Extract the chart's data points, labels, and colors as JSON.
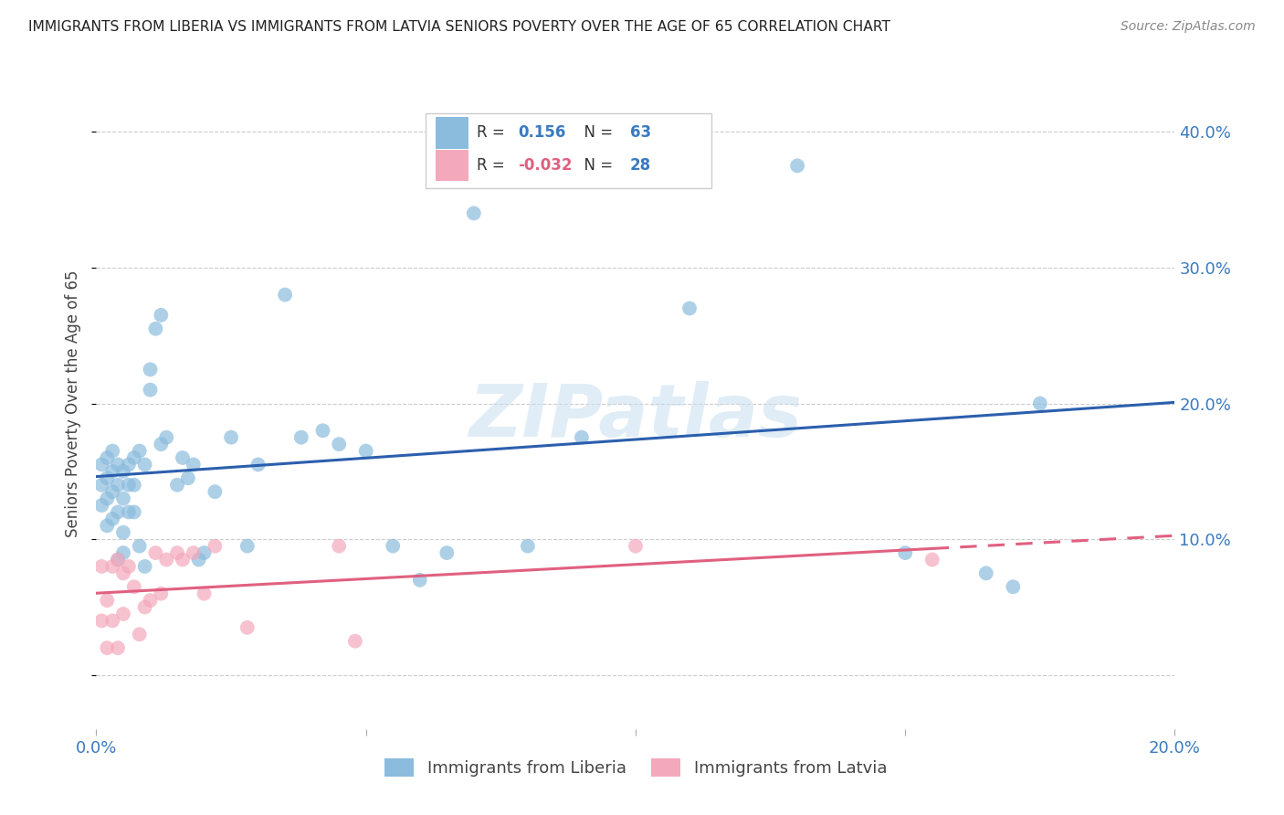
{
  "title": "IMMIGRANTS FROM LIBERIA VS IMMIGRANTS FROM LATVIA SENIORS POVERTY OVER THE AGE OF 65 CORRELATION CHART",
  "source": "Source: ZipAtlas.com",
  "ylabel": "Seniors Poverty Over the Age of 65",
  "xlim": [
    0.0,
    0.2
  ],
  "ylim": [
    -0.04,
    0.44
  ],
  "xticks": [
    0.0,
    0.05,
    0.1,
    0.15,
    0.2
  ],
  "xticklabels": [
    "0.0%",
    "",
    "",
    "",
    "20.0%"
  ],
  "yticks": [
    0.0,
    0.1,
    0.2,
    0.3,
    0.4
  ],
  "yticklabels": [
    "",
    "10.0%",
    "20.0%",
    "30.0%",
    "40.0%"
  ],
  "background_color": "#ffffff",
  "watermark_text": "ZIPatlas",
  "liberia_color": "#8bbcde",
  "latvia_color": "#f4a8bc",
  "liberia_R": "0.156",
  "liberia_N": "63",
  "latvia_R": "-0.032",
  "latvia_N": "28",
  "liberia_line_color": "#2b5fad",
  "latvia_line_color": "#e06080",
  "liberia_x": [
    0.001,
    0.001,
    0.001,
    0.002,
    0.002,
    0.002,
    0.002,
    0.003,
    0.003,
    0.003,
    0.003,
    0.004,
    0.004,
    0.004,
    0.004,
    0.005,
    0.005,
    0.005,
    0.005,
    0.006,
    0.006,
    0.006,
    0.007,
    0.007,
    0.007,
    0.008,
    0.008,
    0.009,
    0.009,
    0.01,
    0.01,
    0.011,
    0.012,
    0.012,
    0.013,
    0.015,
    0.016,
    0.017,
    0.018,
    0.019,
    0.02,
    0.022,
    0.025,
    0.028,
    0.03,
    0.035,
    0.038,
    0.042,
    0.045,
    0.05,
    0.055,
    0.06,
    0.065,
    0.07,
    0.08,
    0.09,
    0.1,
    0.11,
    0.13,
    0.15,
    0.165,
    0.17,
    0.175
  ],
  "liberia_y": [
    0.155,
    0.14,
    0.125,
    0.16,
    0.145,
    0.13,
    0.11,
    0.165,
    0.15,
    0.135,
    0.115,
    0.155,
    0.14,
    0.12,
    0.085,
    0.15,
    0.13,
    0.105,
    0.09,
    0.155,
    0.14,
    0.12,
    0.16,
    0.14,
    0.12,
    0.165,
    0.095,
    0.155,
    0.08,
    0.225,
    0.21,
    0.255,
    0.265,
    0.17,
    0.175,
    0.14,
    0.16,
    0.145,
    0.155,
    0.085,
    0.09,
    0.135,
    0.175,
    0.095,
    0.155,
    0.28,
    0.175,
    0.18,
    0.17,
    0.165,
    0.095,
    0.07,
    0.09,
    0.34,
    0.095,
    0.175,
    0.385,
    0.27,
    0.375,
    0.09,
    0.075,
    0.065,
    0.2
  ],
  "latvia_x": [
    0.001,
    0.001,
    0.002,
    0.002,
    0.003,
    0.003,
    0.004,
    0.004,
    0.005,
    0.005,
    0.006,
    0.007,
    0.008,
    0.009,
    0.01,
    0.011,
    0.012,
    0.013,
    0.015,
    0.016,
    0.018,
    0.02,
    0.022,
    0.028,
    0.045,
    0.048,
    0.1,
    0.155
  ],
  "latvia_y": [
    0.08,
    0.04,
    0.055,
    0.02,
    0.08,
    0.04,
    0.085,
    0.02,
    0.075,
    0.045,
    0.08,
    0.065,
    0.03,
    0.05,
    0.055,
    0.09,
    0.06,
    0.085,
    0.09,
    0.085,
    0.09,
    0.06,
    0.095,
    0.035,
    0.095,
    0.025,
    0.095,
    0.085
  ],
  "legend_liberia_label": "Immigrants from Liberia",
  "legend_latvia_label": "Immigrants from Latvia"
}
